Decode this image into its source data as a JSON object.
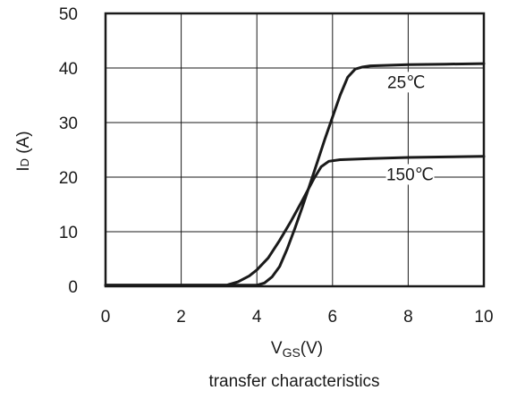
{
  "chart_data": {
    "type": "line",
    "title": "",
    "subtitle": "transfer characteristics",
    "xlabel": {
      "main": "V",
      "sub": "GS",
      "unit": "(V)"
    },
    "ylabel": {
      "main": "I",
      "sub": "D",
      "unit": " (A)"
    },
    "xlim": [
      0,
      10
    ],
    "ylim": [
      0,
      50
    ],
    "xticks": [
      0,
      2,
      4,
      6,
      8,
      10
    ],
    "yticks": [
      0,
      10,
      20,
      30,
      40,
      50
    ],
    "xtick_labels": [
      "0",
      "2",
      "4",
      "6",
      "8",
      "10"
    ],
    "ytick_labels": [
      "0",
      "10",
      "20",
      "30",
      "40",
      "50"
    ],
    "grid": true,
    "colors": {
      "series": "#1a1a1a",
      "grid": "#1a1a1a",
      "background": "#ffffff"
    },
    "series": [
      {
        "name": "25℃",
        "points": [
          [
            0,
            0.2
          ],
          [
            4.0,
            0.2
          ],
          [
            4.2,
            0.6
          ],
          [
            4.4,
            1.7
          ],
          [
            4.6,
            3.6
          ],
          [
            4.8,
            6.8
          ],
          [
            5.0,
            10.5
          ],
          [
            5.2,
            14.5
          ],
          [
            5.4,
            18.6
          ],
          [
            5.6,
            22.8
          ],
          [
            5.8,
            27.0
          ],
          [
            6.0,
            31.0
          ],
          [
            6.2,
            35.0
          ],
          [
            6.4,
            38.3
          ],
          [
            6.6,
            39.8
          ],
          [
            6.8,
            40.2
          ],
          [
            7.0,
            40.4
          ],
          [
            8.0,
            40.6
          ],
          [
            9.0,
            40.7
          ],
          [
            10.0,
            40.8
          ]
        ]
      },
      {
        "name": "150℃",
        "points": [
          [
            0,
            0.2
          ],
          [
            3.2,
            0.2
          ],
          [
            3.5,
            0.8
          ],
          [
            3.8,
            1.9
          ],
          [
            4.0,
            3.0
          ],
          [
            4.3,
            5.2
          ],
          [
            4.6,
            8.4
          ],
          [
            4.9,
            11.9
          ],
          [
            5.2,
            15.7
          ],
          [
            5.5,
            19.6
          ],
          [
            5.7,
            21.9
          ],
          [
            5.9,
            22.9
          ],
          [
            6.2,
            23.2
          ],
          [
            7.0,
            23.4
          ],
          [
            8.0,
            23.6
          ],
          [
            9.0,
            23.7
          ],
          [
            10.0,
            23.8
          ]
        ]
      }
    ],
    "annotations": [
      {
        "text": "25℃",
        "series": 0,
        "x": 7.95,
        "y": 36.5
      },
      {
        "text": "150℃",
        "series": 1,
        "x": 8.05,
        "y": 19.6
      }
    ]
  }
}
